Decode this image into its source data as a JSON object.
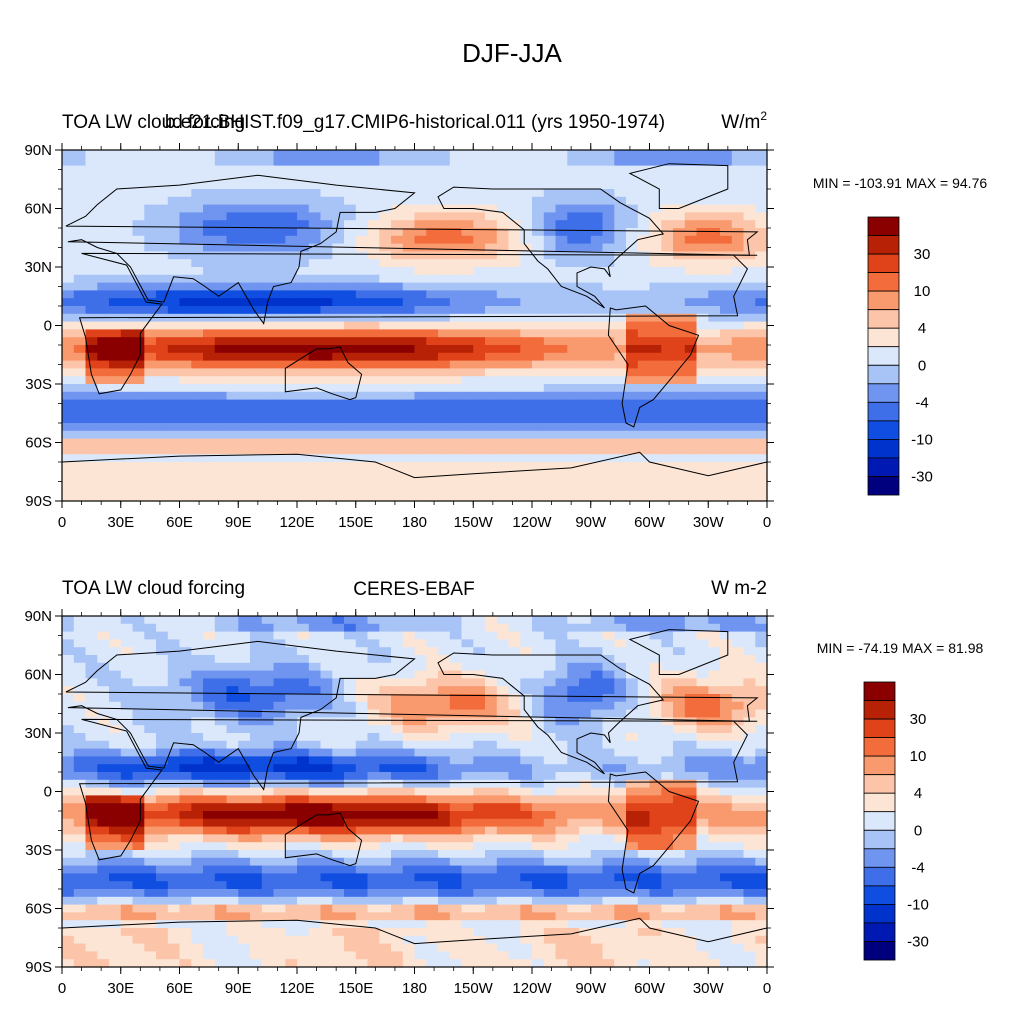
{
  "page": {
    "title": "DJF-JJA"
  },
  "colors": {
    "levels": [
      "#00007f",
      "#0019b2",
      "#0033cc",
      "#0f4ee0",
      "#3f6fe8",
      "#6f95f0",
      "#a8c4f7",
      "#dbe8fb",
      "#fde5d5",
      "#fcc4a8",
      "#f99a6e",
      "#f36c3c",
      "#e0421a",
      "#b72206",
      "#8a0000"
    ],
    "land_outline": "#000000"
  },
  "chart_data": [
    {
      "type": "heatmap",
      "panel": "top",
      "title_left": "TOA LW cloud forcing",
      "title_center": "b.e21.BHIST.f09_g17.CMIP6-historical.011 (yrs 1950-1974)",
      "units": "W/m",
      "units_superscript": "2",
      "stats": "MIN = -103.91 MAX =  94.76",
      "min": -103.91,
      "max": 94.76,
      "x_ticks": [
        "0",
        "30E",
        "60E",
        "90E",
        "120E",
        "150E",
        "180",
        "150W",
        "120W",
        "90W",
        "60W",
        "30W",
        "0"
      ],
      "y_ticks": [
        "90N",
        "60N",
        "30N",
        "0",
        "30S",
        "60S",
        "90S"
      ],
      "xlim": [
        0,
        360
      ],
      "ylim": [
        -90,
        90
      ],
      "colorbar_labels": [
        "30",
        "10",
        "4",
        "0",
        "-4",
        "-10",
        "-30"
      ],
      "grid": false
    },
    {
      "type": "heatmap",
      "panel": "bottom",
      "title_left": "TOA LW cloud forcing",
      "title_center": "CERES-EBAF",
      "units": "W m-2",
      "stats": "MIN = -74.19 MAX =  81.98",
      "min": -74.19,
      "max": 81.98,
      "x_ticks": [
        "0",
        "30E",
        "60E",
        "90E",
        "120E",
        "150E",
        "180",
        "150W",
        "120W",
        "90W",
        "60W",
        "30W",
        "0"
      ],
      "y_ticks": [
        "90N",
        "60N",
        "30N",
        "0",
        "30S",
        "60S",
        "90S"
      ],
      "xlim": [
        0,
        360
      ],
      "ylim": [
        -90,
        90
      ],
      "colorbar_labels": [
        "30",
        "10",
        "4",
        "0",
        "-4",
        "-10",
        "-30"
      ],
      "grid": false
    }
  ]
}
